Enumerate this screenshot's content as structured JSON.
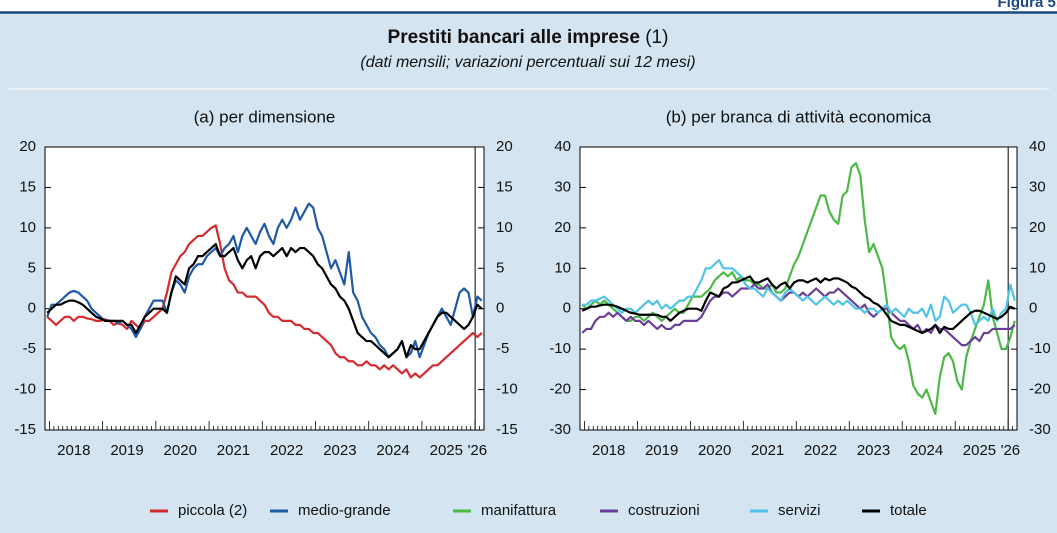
{
  "figure_label": "Figura 5.",
  "title": "Prestiti bancari alle imprese",
  "title_note": "(1)",
  "subtitle": "(dati mensili; variazioni percentuali sui 12 mesi)",
  "chart_data": [
    {
      "type": "line",
      "title": "(a) per dimensione",
      "categories": [
        null,
        null,
        null,
        null,
        null,
        null,
        "2018",
        null,
        null,
        null,
        null,
        null,
        null,
        null,
        null,
        null,
        null,
        null,
        "2019",
        null,
        null,
        null,
        null,
        null,
        null,
        null,
        null,
        null,
        null,
        null,
        "2020",
        null,
        null,
        null,
        null,
        null,
        null,
        null,
        null,
        null,
        null,
        null,
        "2021",
        null,
        null,
        null,
        null,
        null,
        null,
        null,
        null,
        null,
        null,
        null,
        "2022",
        null,
        null,
        null,
        null,
        null,
        null,
        null,
        null,
        null,
        null,
        null,
        "2023",
        null,
        null,
        null,
        null,
        null,
        null,
        null,
        null,
        null,
        null,
        null,
        "2024",
        null,
        null,
        null,
        null,
        null,
        null,
        null,
        null,
        null,
        null,
        null,
        "2025",
        null,
        null,
        null,
        null,
        null,
        null,
        "'26",
        null
      ],
      "ylim": [
        -15,
        20
      ],
      "yticks": [
        -15,
        -10,
        -5,
        0,
        5,
        10,
        15,
        20
      ],
      "y2lim": [
        -15,
        20
      ],
      "y2ticks": [
        -15,
        -10,
        -5,
        0,
        5,
        10,
        15,
        20
      ],
      "series": [
        {
          "name": "piccola (2)",
          "color": "#d52b2e",
          "values": [
            -1,
            -1.5,
            -2,
            -1.5,
            -1,
            -1,
            -1.5,
            -1,
            -1,
            -1.2,
            -1.3,
            -1.5,
            -1.5,
            -1.3,
            -1.5,
            -2,
            -1.8,
            -2,
            -2.5,
            -1.5,
            -2,
            -2.5,
            -1.5,
            -1.5,
            -1,
            -0.5,
            0,
            2,
            4.5,
            5.5,
            6.5,
            7,
            8,
            8.5,
            9,
            9,
            9.5,
            10,
            10.3,
            8,
            5,
            3.5,
            3,
            2,
            2,
            1.5,
            1.5,
            1.5,
            1,
            0.5,
            -0.5,
            -1,
            -1,
            -1.5,
            -1.5,
            -1.5,
            -2,
            -2,
            -2.5,
            -2.5,
            -3,
            -3,
            -3.5,
            -4,
            -4.5,
            -5.5,
            -6,
            -6,
            -6.5,
            -6.5,
            -7,
            -7,
            -6.5,
            -7,
            -7,
            -7.5,
            -7,
            -7.5,
            -7,
            -7.5,
            -8,
            -7.5,
            -8.5,
            -8,
            -8.5,
            -8,
            -7.5,
            -7,
            -7,
            -6.5,
            -6,
            -5.5,
            -5,
            -4.5,
            -4,
            -3.5,
            -3,
            -3.5,
            -3
          ]
        },
        {
          "name": "medio-grande",
          "color": "#1f5aa6",
          "values": [
            -1,
            0.5,
            0.5,
            1,
            1.5,
            2,
            2.2,
            2,
            1.5,
            1,
            0,
            -0.5,
            -1,
            -1.5,
            -1.5,
            -1.5,
            -1.8,
            -1.5,
            -2,
            -2.5,
            -3.5,
            -2.5,
            -1,
            0,
            1,
            1,
            1,
            -0.5,
            2,
            3.5,
            3,
            2,
            4,
            5,
            5.5,
            5.5,
            6.5,
            7,
            7.5,
            6.5,
            7.5,
            8,
            9,
            7,
            9,
            10,
            9,
            8,
            9.5,
            10.5,
            9,
            8,
            10,
            11,
            10,
            11,
            12.5,
            11,
            12,
            13,
            12.5,
            10,
            9,
            7,
            5,
            6,
            4.5,
            3,
            7,
            2,
            1,
            -1,
            -2,
            -3,
            -3.5,
            -4.5,
            -5,
            -6,
            -5.5,
            -5,
            -4,
            -6,
            -5.5,
            -4,
            -6,
            -4.5,
            -3,
            -2,
            -1,
            0,
            -1,
            -2,
            0,
            2,
            2.5,
            2,
            -1,
            1.5,
            1
          ]
        },
        {
          "name": "totale",
          "color": "#000000",
          "values": [
            -0.5,
            0,
            0.5,
            0.5,
            0.8,
            1,
            1,
            0.8,
            0.5,
            0,
            -0.5,
            -1,
            -1.2,
            -1.5,
            -1.5,
            -1.5,
            -1.5,
            -1.5,
            -2,
            -2,
            -3,
            -2,
            -1,
            -0.5,
            0,
            0,
            0,
            -0.5,
            2,
            4,
            3.5,
            3,
            5,
            5.5,
            6.5,
            6.5,
            7,
            7.5,
            8,
            6.5,
            6.5,
            7,
            7.5,
            6,
            5,
            6,
            6.5,
            5,
            6.5,
            7,
            7,
            6.5,
            7,
            7.5,
            6.5,
            7.5,
            7,
            7.5,
            7.5,
            7,
            6.5,
            5.5,
            5,
            4,
            3,
            2.5,
            1.5,
            1,
            0,
            -1.5,
            -3,
            -3.5,
            -4,
            -4,
            -4.5,
            -5,
            -5.5,
            -6,
            -5.5,
            -5,
            -4,
            -6,
            -4.5,
            -5,
            -5,
            -4,
            -3,
            -2,
            -1,
            -0.5,
            -0.5,
            -1,
            -1.5,
            -2,
            -2.5,
            -2,
            -1,
            0.5,
            0
          ]
        }
      ]
    },
    {
      "type": "line",
      "title": "(b) per branca di attività economica",
      "categories": [
        null,
        null,
        null,
        null,
        null,
        null,
        "2018",
        null,
        null,
        null,
        null,
        null,
        null,
        null,
        null,
        null,
        null,
        null,
        "2019",
        null,
        null,
        null,
        null,
        null,
        null,
        null,
        null,
        null,
        null,
        null,
        "2020",
        null,
        null,
        null,
        null,
        null,
        null,
        null,
        null,
        null,
        null,
        null,
        "2021",
        null,
        null,
        null,
        null,
        null,
        null,
        null,
        null,
        null,
        null,
        null,
        "2022",
        null,
        null,
        null,
        null,
        null,
        null,
        null,
        null,
        null,
        null,
        null,
        "2023",
        null,
        null,
        null,
        null,
        null,
        null,
        null,
        null,
        null,
        null,
        null,
        "2024",
        null,
        null,
        null,
        null,
        null,
        null,
        null,
        null,
        null,
        null,
        null,
        "2025",
        null,
        null,
        null,
        null,
        null,
        null,
        "'26",
        null
      ],
      "ylim": [
        -30,
        40
      ],
      "yticks": [
        -30,
        -20,
        -10,
        0,
        10,
        20,
        30,
        40
      ],
      "y2lim": [
        -30,
        40
      ],
      "y2ticks": [
        -30,
        -20,
        -10,
        0,
        10,
        20,
        30,
        40
      ],
      "series": [
        {
          "name": "manifattura",
          "color": "#4cb848",
          "values": [
            1,
            0,
            1,
            2,
            1,
            2,
            1,
            0,
            -1,
            -2,
            -3,
            -3,
            -2,
            -2,
            -3,
            -2,
            -1,
            -2,
            -3,
            -2,
            -1,
            0,
            -1,
            -1,
            1,
            3,
            3,
            3,
            4,
            5,
            7,
            8,
            9,
            8,
            9,
            7,
            8,
            7,
            7,
            6,
            6,
            5,
            5,
            6,
            4,
            4,
            5,
            8,
            11,
            13,
            16,
            19,
            22,
            25,
            28,
            28,
            24,
            22,
            21,
            28,
            29,
            35,
            36,
            33,
            22,
            14,
            16,
            13,
            10,
            2,
            -7,
            -9,
            -10,
            -9,
            -13,
            -19,
            -21,
            -22,
            -20,
            -23,
            -26,
            -17,
            -12,
            -11,
            -13,
            -18,
            -20,
            -12,
            -8,
            -5,
            -2,
            1,
            7,
            -2,
            -6,
            -10,
            -10,
            -7,
            -3
          ]
        },
        {
          "name": "costruzioni",
          "color": "#6b3f98",
          "values": [
            -6,
            -5,
            -5,
            -3,
            -2,
            -2,
            -1,
            -2,
            -1,
            -2,
            -3,
            -2,
            -3,
            -3,
            -4,
            -3,
            -4,
            -5,
            -4,
            -5,
            -5,
            -4,
            -4,
            -3,
            -3,
            -3,
            -3,
            -2,
            0,
            2,
            3,
            3,
            4,
            4,
            3,
            4,
            5,
            5,
            5,
            6,
            5,
            5,
            6,
            4,
            3,
            2,
            3,
            4,
            4,
            3,
            4,
            3,
            4,
            5,
            4,
            3,
            4,
            4,
            5,
            4,
            3,
            2,
            1,
            0,
            1,
            -1,
            -2,
            -1,
            0,
            0,
            -1,
            -2,
            -3,
            -3,
            -4,
            -5,
            -4,
            -6,
            -5,
            -6,
            -4,
            -5,
            -5,
            -6,
            -7,
            -8,
            -9,
            -9,
            -8,
            -7,
            -8,
            -6,
            -6,
            -5,
            -5,
            -5,
            -5,
            -5,
            -4
          ]
        },
        {
          "name": "servizi",
          "color": "#4fc3e8",
          "values": [
            1,
            1,
            2,
            2,
            2.5,
            3,
            2,
            1,
            0,
            -1,
            0,
            0,
            -1,
            0,
            1,
            2,
            1,
            2,
            0,
            1,
            0,
            1,
            2,
            2,
            3,
            3,
            5,
            7,
            10,
            10,
            11,
            12,
            10,
            10,
            10,
            9,
            8,
            6,
            5,
            5,
            4,
            3,
            5,
            4,
            3,
            2,
            4,
            5,
            4,
            3,
            2,
            3,
            2,
            1,
            2,
            3,
            2,
            1,
            2,
            1,
            2,
            1,
            0,
            0,
            -1,
            0,
            0,
            -1,
            0,
            1,
            -1,
            0,
            -1,
            -2,
            0,
            -1,
            -1,
            0,
            -2,
            1,
            -3,
            -2,
            3,
            2,
            -1,
            0,
            1,
            1,
            -1,
            -4,
            -3,
            -2,
            -3,
            0,
            -3,
            -1,
            0,
            6,
            2
          ]
        },
        {
          "name": "totale",
          "color": "#000000",
          "values": [
            -0.5,
            0,
            0.5,
            0.5,
            0.8,
            1,
            1,
            0.8,
            0.5,
            0,
            -0.5,
            -1,
            -1.2,
            -1.5,
            -1.5,
            -1.5,
            -1.5,
            -1.5,
            -2,
            -2,
            -3,
            -2,
            -1,
            -0.5,
            0,
            0,
            0,
            -0.5,
            2,
            4,
            3.5,
            3,
            5,
            5.5,
            6.5,
            6.5,
            7,
            7.5,
            8,
            6.5,
            6.5,
            7,
            7.5,
            6,
            5,
            6,
            6.5,
            5,
            6.5,
            7,
            7,
            6.5,
            7,
            7.5,
            6.5,
            7.5,
            7,
            7.5,
            7.5,
            7,
            6.5,
            5.5,
            5,
            4,
            3,
            2.5,
            1.5,
            1,
            0,
            -1.5,
            -3,
            -3.5,
            -4,
            -4,
            -4.5,
            -5,
            -5.5,
            -6,
            -5.5,
            -5,
            -4,
            -6,
            -4.5,
            -5,
            -5,
            -4,
            -3,
            -2,
            -1,
            -0.5,
            -0.5,
            -1,
            -1.5,
            -2,
            -2.5,
            -2,
            -1,
            0.5,
            0
          ]
        }
      ]
    }
  ]
}
